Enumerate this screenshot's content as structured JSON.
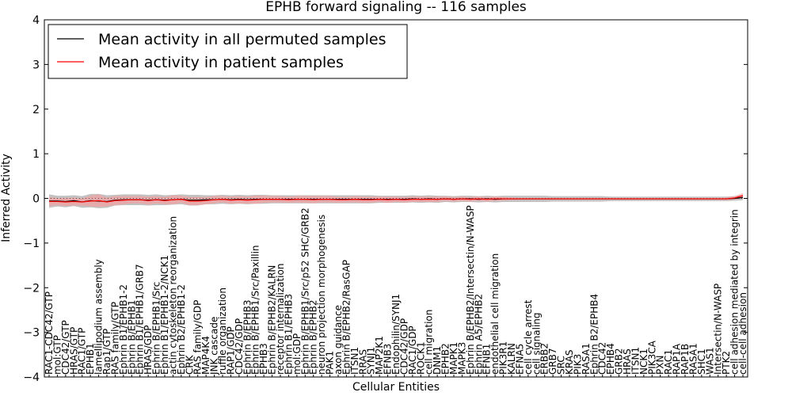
{
  "chart_data": {
    "type": "line",
    "title": "EPHB forward signaling -- 116 samples",
    "xlabel": "Cellular Entities",
    "ylabel": "Inferred Activity",
    "ylim": [
      -4,
      4
    ],
    "yticks": [
      -4,
      -3,
      -2,
      -1,
      0,
      1,
      2,
      3,
      4
    ],
    "legend_position": "top-left",
    "grid": false,
    "categories": [
      "RAC1-CDC42/GTP",
      "mol:GTP",
      "CDC42/GTP",
      "HRAS/GTP",
      "RAC1/GTP",
      "EPHB1",
      "lamellipodium assembly",
      "Rap1/GTP",
      "RAS family/GTP",
      "Ephrin B1/EPHB1-2",
      "Ephrin B/EPHB1",
      "Ephrin B1/EPHB1/GRB7",
      "HRAS/GDP",
      "Ephrin B/EPHB1/Src",
      "Ephrin B1/EPHB1-2/NCK1",
      "actin cytoskeleton reorganization",
      "Ephrin B2/EPHB1-2",
      "CRK",
      "RAS family/GDP",
      "MAP4K4",
      "JNK cascade",
      "ruffle organization",
      "RAP1/GDP",
      "CDC42/GDP",
      "Ephrin B/EPHB3",
      "Ephrin B/EPHB1/Src/Paxillin",
      "EPHB3",
      "Ephrin B/EPHB2/KALRN",
      "receptor internalization",
      "Ephrin B1/EPHB3",
      "mol:GDP",
      "Ephrin B/EPHB1/Src/p52 SHC/GRB2",
      "Ephrin B/EPHB2",
      "neuron projection morphogenesis",
      "PAK1",
      "axon guidance",
      "Ephrin B/EPHB2/RasGAP",
      "ITSN1",
      "RRAS",
      "SYNJ1",
      "MAP2K1",
      "EFNB3",
      "Endophilin/SYNJ1",
      "CDC42/GDP",
      "RAC1/GDP",
      "ROCK1",
      "cell migration",
      "DNM1",
      "EPHB2",
      "MAPK1",
      "MAPK3",
      "Ephrin B/EPHB2/Intersectin/N-WASP",
      "Ephrin A5/EPHB2",
      "EFNB1",
      "endothelial cell migration",
      "PIK3R1",
      "KALRN",
      "EFNA5",
      "cell cycle arrest",
      "cell signaling",
      "ERBB2",
      "GRB7",
      "SRC",
      "KRAS",
      "PIK3",
      "RASA1",
      "Ephrin B2/EPHB4",
      "CDC42",
      "EPHB4",
      "GRB2",
      "HRAS",
      "ITSN1",
      "NCK1",
      "PIK3CA",
      "PXN",
      "RAC1",
      "RAP1A",
      "RAP1B",
      "RASA1",
      "SHC1",
      "WAS1",
      "Intersectin/N-WASP",
      "PTK2",
      "cell adhesion mediated by integrin",
      "cell-cell adhesion"
    ],
    "series": [
      {
        "name": "Mean activity in all permuted samples",
        "color": "#000000",
        "values": [
          -0.06,
          -0.06,
          -0.07,
          -0.05,
          -0.08,
          -0.05,
          -0.06,
          -0.07,
          -0.04,
          -0.03,
          -0.03,
          -0.03,
          -0.04,
          -0.03,
          -0.04,
          -0.03,
          -0.02,
          -0.04,
          -0.04,
          -0.03,
          -0.03,
          -0.02,
          -0.03,
          -0.02,
          -0.03,
          -0.02,
          -0.02,
          -0.02,
          -0.02,
          -0.02,
          -0.02,
          -0.02,
          -0.02,
          -0.02,
          -0.02,
          -0.02,
          -0.02,
          -0.02,
          -0.02,
          -0.02,
          -0.02,
          -0.02,
          -0.02,
          -0.02,
          -0.01,
          -0.02,
          -0.01,
          -0.02,
          -0.01,
          -0.02,
          -0.01,
          -0.01,
          -0.02,
          -0.01,
          -0.02,
          -0.01,
          -0.01,
          -0.01,
          -0.01,
          -0.01,
          -0.01,
          -0.01,
          -0.01,
          -0.01,
          -0.01,
          -0.01,
          -0.01,
          -0.01,
          -0.01,
          -0.01,
          -0.01,
          -0.01,
          -0.01,
          -0.01,
          -0.01,
          -0.01,
          -0.01,
          -0.01,
          -0.01,
          -0.01,
          -0.01,
          -0.01,
          -0.01,
          0.0,
          0.02
        ]
      },
      {
        "name": "Mean activity in patient samples",
        "color": "#ff0000",
        "values": [
          -0.07,
          -0.07,
          -0.08,
          -0.07,
          -0.08,
          -0.06,
          -0.05,
          -0.08,
          -0.05,
          -0.04,
          -0.03,
          -0.03,
          -0.05,
          -0.03,
          -0.05,
          -0.03,
          -0.02,
          -0.06,
          -0.06,
          -0.05,
          -0.03,
          -0.02,
          -0.04,
          -0.03,
          -0.04,
          -0.03,
          -0.02,
          -0.02,
          -0.02,
          -0.03,
          -0.02,
          -0.02,
          -0.03,
          -0.02,
          -0.02,
          -0.03,
          -0.03,
          -0.02,
          -0.03,
          -0.03,
          -0.02,
          -0.03,
          -0.02,
          -0.03,
          -0.02,
          -0.02,
          -0.02,
          -0.02,
          -0.01,
          -0.02,
          -0.01,
          -0.02,
          -0.01,
          -0.02,
          -0.01,
          -0.01,
          -0.01,
          -0.01,
          -0.01,
          -0.01,
          -0.01,
          -0.01,
          -0.01,
          -0.01,
          -0.01,
          -0.01,
          -0.01,
          -0.01,
          -0.01,
          -0.01,
          -0.01,
          -0.01,
          -0.01,
          -0.01,
          -0.01,
          -0.01,
          -0.01,
          -0.01,
          -0.01,
          -0.01,
          -0.01,
          -0.01,
          -0.01,
          0.01,
          0.06
        ]
      }
    ],
    "bands": [
      {
        "series": "Mean activity in all permuted samples",
        "color": "#999999",
        "spread": [
          0.15,
          0.12,
          0.13,
          0.12,
          0.13,
          0.15,
          0.16,
          0.14,
          0.12,
          0.12,
          0.12,
          0.12,
          0.12,
          0.12,
          0.11,
          0.11,
          0.11,
          0.12,
          0.12,
          0.1,
          0.1,
          0.1,
          0.1,
          0.1,
          0.1,
          0.1,
          0.1,
          0.09,
          0.09,
          0.09,
          0.09,
          0.09,
          0.09,
          0.09,
          0.09,
          0.09,
          0.09,
          0.09,
          0.09,
          0.09,
          0.08,
          0.08,
          0.08,
          0.08,
          0.08,
          0.08,
          0.08,
          0.08,
          0.07,
          0.07,
          0.07,
          0.07,
          0.07,
          0.07,
          0.07,
          0.07,
          0.07,
          0.07,
          0.07,
          0.07,
          0.07,
          0.06,
          0.06,
          0.06,
          0.06,
          0.06,
          0.06,
          0.06,
          0.05,
          0.05,
          0.05,
          0.05,
          0.05,
          0.05,
          0.05,
          0.05,
          0.05,
          0.05,
          0.05,
          0.05,
          0.05,
          0.05,
          0.05,
          0.05,
          0.06
        ]
      },
      {
        "series": "Mean activity in patient samples",
        "color": "#ff9999",
        "spread": [
          0.1,
          0.08,
          0.09,
          0.09,
          0.08,
          0.12,
          0.14,
          0.1,
          0.1,
          0.09,
          0.08,
          0.08,
          0.09,
          0.08,
          0.08,
          0.1,
          0.08,
          0.09,
          0.09,
          0.08,
          0.08,
          0.07,
          0.08,
          0.08,
          0.08,
          0.09,
          0.08,
          0.07,
          0.07,
          0.07,
          0.07,
          0.08,
          0.08,
          0.07,
          0.07,
          0.07,
          0.06,
          0.07,
          0.07,
          0.07,
          0.06,
          0.07,
          0.06,
          0.06,
          0.06,
          0.06,
          0.06,
          0.06,
          0.05,
          0.05,
          0.05,
          0.05,
          0.05,
          0.05,
          0.05,
          0.04,
          0.03,
          0.02,
          0.02,
          0.02,
          0.02,
          0.02,
          0.02,
          0.02,
          0.02,
          0.02,
          0.02,
          0.02,
          0.02,
          0.02,
          0.02,
          0.02,
          0.02,
          0.02,
          0.02,
          0.02,
          0.02,
          0.02,
          0.02,
          0.02,
          0.02,
          0.02,
          0.03,
          0.04,
          0.06
        ]
      }
    ]
  }
}
